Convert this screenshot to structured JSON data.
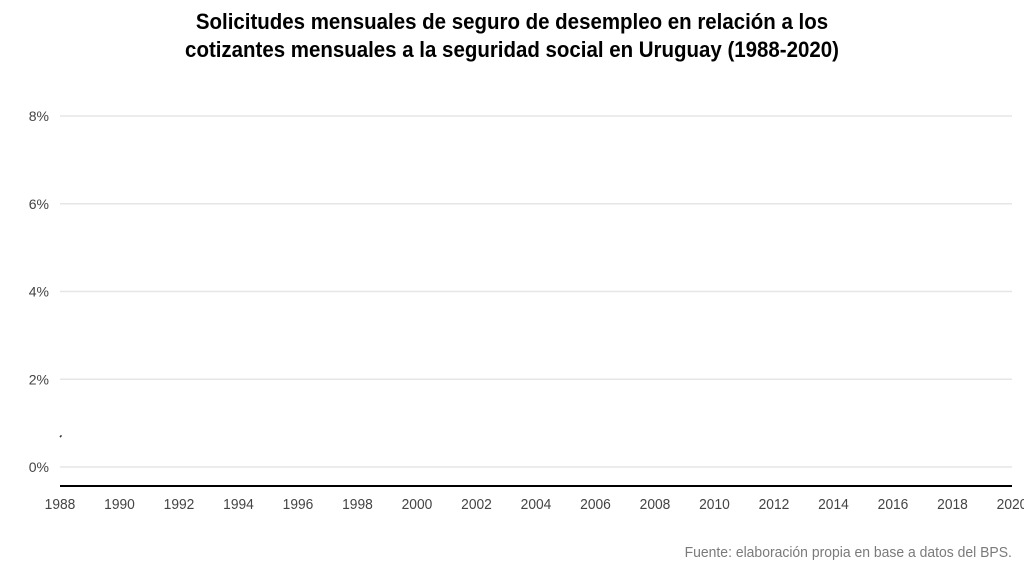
{
  "chart_data": {
    "type": "line",
    "title_lines": [
      "Solicitudes mensuales de seguro de desempleo en relación a los",
      "cotizantes mensuales a la seguridad social en Uruguay (1988-2020)"
    ],
    "xlabel": "",
    "ylabel": "",
    "x_ticks": [
      "1988",
      "1990",
      "1992",
      "1994",
      "1996",
      "1998",
      "2000",
      "2002",
      "2004",
      "2006",
      "2008",
      "2010",
      "2012",
      "2014",
      "2016",
      "2018",
      "2020"
    ],
    "y_ticks": [
      "0%",
      "2%",
      "4%",
      "6%",
      "8%"
    ],
    "xlim": [
      1988,
      2020
    ],
    "ylim": [
      -0.4,
      8
    ],
    "grid": true,
    "series": [
      {
        "x": [
          1988.0,
          1988.05
        ],
        "y": [
          0.68,
          0.72
        ]
      }
    ],
    "colors": {
      "line": "#333333",
      "grid": "#e6e6e6",
      "axis": "#000000"
    }
  },
  "source": "Fuente: elaboración propia en base a datos del BPS."
}
